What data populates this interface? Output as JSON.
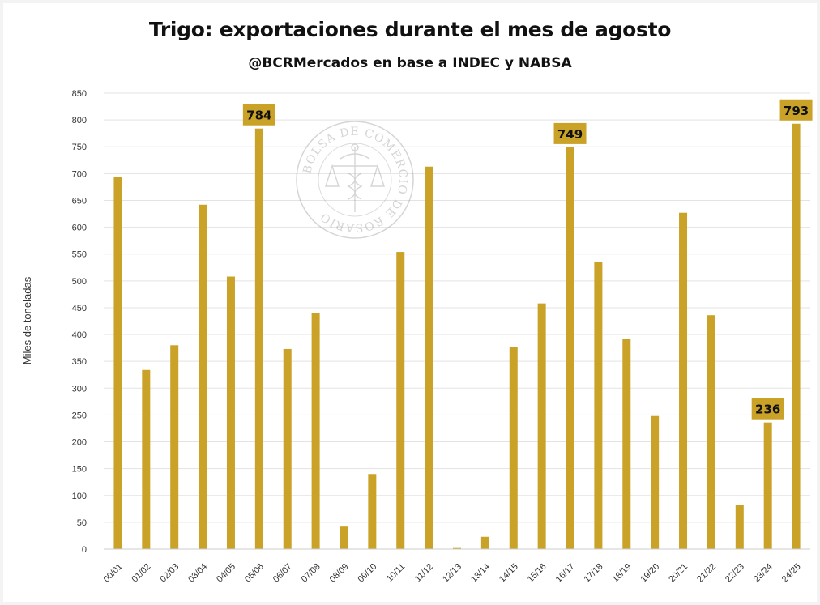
{
  "chart_data": {
    "type": "bar",
    "title": "Trigo: exportaciones durante el mes de agosto",
    "subtitle": "@BCRMercados en base a INDEC y NABSA",
    "xlabel": "",
    "ylabel": "Miles de toneladas",
    "ylim": [
      0,
      850
    ],
    "ytick_step": 50,
    "grid": true,
    "bar_color": "#c9a227",
    "callout_color": "#c9a227",
    "categories": [
      "00/01",
      "01/02",
      "02/03",
      "03/04",
      "04/05",
      "05/06",
      "06/07",
      "07/08",
      "08/09",
      "09/10",
      "10/11",
      "11/12",
      "12/13",
      "13/14",
      "14/15",
      "15/16",
      "16/17",
      "17/18",
      "18/19",
      "19/20",
      "20/21",
      "21/22",
      "22/23",
      "23/24",
      "24/25"
    ],
    "values": [
      693,
      334,
      380,
      642,
      508,
      784,
      373,
      440,
      42,
      140,
      554,
      713,
      2,
      23,
      376,
      458,
      749,
      536,
      392,
      248,
      627,
      436,
      82,
      236,
      793
    ],
    "callouts": [
      {
        "category": "05/06",
        "label": "784"
      },
      {
        "category": "16/17",
        "label": "749"
      },
      {
        "category": "23/24",
        "label": "236"
      },
      {
        "category": "24/25",
        "label": "793"
      }
    ]
  },
  "watermark": {
    "text": "BOLSA DE COMERCIO DE ROSARIO",
    "icon": "scales-caduceus-seal-icon"
  }
}
